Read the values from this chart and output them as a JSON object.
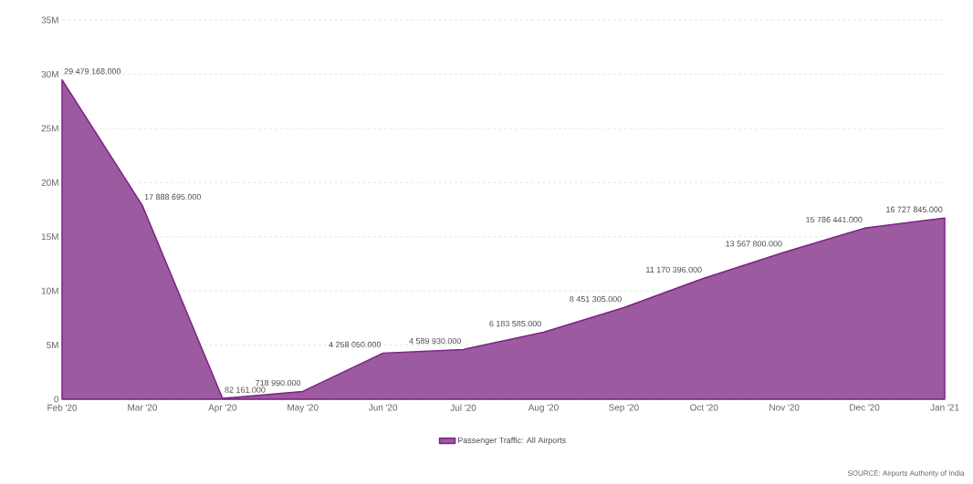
{
  "chart_data": {
    "type": "area",
    "categories": [
      "Feb '20",
      "Mar '20",
      "Apr '20",
      "May '20",
      "Jun '20",
      "Jul '20",
      "Aug '20",
      "Sep '20",
      "Oct '20",
      "Nov '20",
      "Dec '20",
      "Jan '21"
    ],
    "series": [
      {
        "name": "Passenger Traffic: All Airports",
        "color": "#7b2382",
        "values": [
          29479168,
          17888695,
          82161,
          718990,
          4258050,
          4589930,
          6183585,
          8451305,
          11170396,
          13567800,
          15786441,
          16727845
        ],
        "value_labels": [
          "29 479 168.000",
          "17 888 695.000",
          "82 161.000",
          "718 990.000",
          "4 258 050.000",
          "4 589 930.000",
          "6 183 585.000",
          "8 451 305.000",
          "11 170 396.000",
          "13 567 800.000",
          "15 786 441.000",
          "16 727 845.000"
        ]
      }
    ],
    "ylim": [
      0,
      35000000
    ],
    "yticks": [
      0,
      {
        "value": 5000000,
        "label": "5M"
      },
      {
        "value": 10000000,
        "label": "10M"
      },
      {
        "value": 15000000,
        "label": "15M"
      },
      {
        "value": 20000000,
        "label": "20M"
      },
      {
        "value": 25000000,
        "label": "25M"
      },
      {
        "value": 30000000,
        "label": "30M"
      },
      {
        "value": 35000000,
        "label": "35M"
      }
    ],
    "grid": "y",
    "legend": "bottom",
    "annotations": [
      "SOURCE: Airports Authority of India"
    ]
  }
}
